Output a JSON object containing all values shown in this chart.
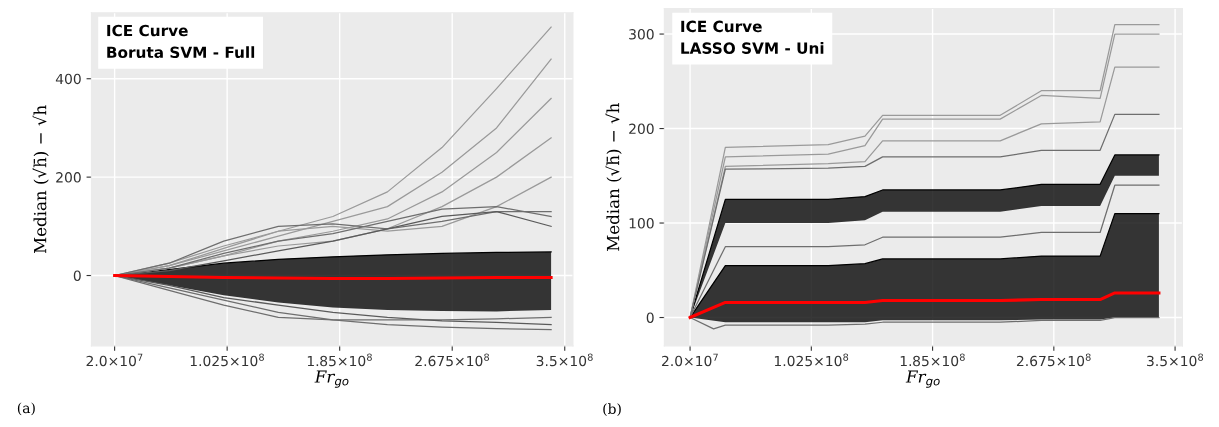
{
  "chart_data": [
    {
      "type": "line",
      "xlabel": "Fr$_{go}$",
      "ylabel": "Median (√h̄) − √h",
      "annotations": [
        "ICE Curve",
        "Boruta SVM - Full",
        "(a)"
      ],
      "x": [
        20000000,
        60000000,
        100000000,
        140000000,
        180000000,
        220000000,
        260000000,
        300000000,
        340000000
      ],
      "xlim": [
        3000000,
        356000000
      ],
      "ylim": [
        -143,
        534
      ],
      "xticks": [
        {
          "value": 20000000,
          "label": "2.0×10$^{7}$"
        },
        {
          "value": 102500000,
          "label": "1.025×10$^{8}$"
        },
        {
          "value": 185000000,
          "label": "1.85×10$^{8}$"
        },
        {
          "value": 267500000,
          "label": "2.675×10$^{8}$"
        },
        {
          "value": 350000000,
          "label": "3.5×10$^{8}$"
        }
      ],
      "yticks": [
        0,
        200,
        400
      ],
      "grid": true,
      "marker": "none",
      "line_style": "solid",
      "series": [
        {
          "color": "#000000",
          "values": [
            0,
            12,
            25,
            33,
            38,
            42,
            45,
            47,
            48
          ],
          "lower": [
            0,
            -20,
            -40,
            -55,
            -65,
            -70,
            -72,
            -73,
            -70
          ],
          "upper": [
            0,
            12,
            25,
            33,
            38,
            42,
            45,
            47,
            48
          ]
        },
        {
          "color": "#9a9a9a",
          "values": [
            0,
            25,
            60,
            90,
            120,
            170,
            260,
            380,
            505
          ]
        },
        {
          "color": "#9a9a9a",
          "values": [
            0,
            20,
            50,
            80,
            110,
            140,
            210,
            300,
            440
          ]
        },
        {
          "color": "#9a9a9a",
          "values": [
            0,
            15,
            40,
            70,
            90,
            115,
            170,
            250,
            360
          ]
        },
        {
          "color": "#9a9a9a",
          "values": [
            0,
            15,
            40,
            60,
            70,
            95,
            140,
            200,
            280
          ]
        },
        {
          "color": "#9a9a9a",
          "values": [
            0,
            20,
            55,
            90,
            100,
            90,
            100,
            140,
            200
          ]
        },
        {
          "color": "#6e6e6e",
          "values": [
            0,
            25,
            70,
            100,
            105,
            95,
            110,
            130,
            130
          ]
        },
        {
          "color": "#6e6e6e",
          "values": [
            0,
            15,
            45,
            70,
            85,
            110,
            135,
            140,
            120
          ]
        },
        {
          "color": "#5a5a5a",
          "values": [
            0,
            10,
            30,
            50,
            70,
            95,
            120,
            130,
            100
          ]
        },
        {
          "color": "#6e6e6e",
          "values": [
            0,
            -25,
            -50,
            -75,
            -90,
            -100,
            -105,
            -108,
            -110
          ]
        },
        {
          "color": "#6e6e6e",
          "values": [
            0,
            -30,
            -60,
            -85,
            -90,
            -90,
            -90,
            -88,
            -85
          ]
        },
        {
          "color": "#5a5a5a",
          "values": [
            0,
            -20,
            -45,
            -60,
            -75,
            -85,
            -92,
            -95,
            -100
          ]
        },
        {
          "color": "#ff0000",
          "values": [
            0,
            -2,
            -4,
            -5,
            -6,
            -6,
            -5,
            -4,
            -4
          ]
        }
      ]
    },
    {
      "type": "line",
      "xlabel": "Fr$_{go}$",
      "ylabel": "Median (√h̄) − √h",
      "annotations": [
        "ICE Curve",
        "LASSO SVM - Uni",
        "(b)"
      ],
      "x": [
        20000000,
        44000000,
        114000000,
        139000000,
        151000000,
        231000000,
        259000000,
        299000000,
        309000000,
        339000000
      ],
      "xlim": [
        2500000,
        355000000
      ],
      "ylim": [
        -30,
        327
      ],
      "xticks": [
        {
          "value": 20000000,
          "label": "2.0×10$^{7}$"
        },
        {
          "value": 102500000,
          "label": "1.025×10$^{8}$"
        },
        {
          "value": 185000000,
          "label": "1.85×10$^{8}$"
        },
        {
          "value": 267500000,
          "label": "2.675×10$^{8}$"
        },
        {
          "value": 350000000,
          "label": "3.5×10$^{8}$"
        }
      ],
      "yticks": [
        0,
        100,
        200,
        300
      ],
      "grid": true,
      "marker": "none",
      "line_style": "solid",
      "series": [
        {
          "color": "#000000",
          "values": [
            0,
            55,
            55,
            57,
            62,
            62,
            65,
            65,
            110,
            110
          ],
          "lower": [
            0,
            -5,
            -5,
            -5,
            -3,
            -3,
            -2,
            -2,
            0,
            0
          ],
          "upper": [
            0,
            55,
            55,
            57,
            62,
            62,
            65,
            65,
            110,
            110
          ]
        },
        {
          "color": "#000000",
          "values": [
            0,
            125,
            125,
            128,
            135,
            135,
            141,
            141,
            172,
            172
          ],
          "lower": [
            0,
            100,
            100,
            103,
            112,
            112,
            118,
            118,
            150,
            150
          ],
          "upper": [
            0,
            125,
            125,
            128,
            135,
            135,
            141,
            141,
            172,
            172
          ]
        },
        {
          "color": "#9a9a9a",
          "values": [
            0,
            180,
            183,
            192,
            214,
            214,
            240,
            240,
            310,
            310
          ]
        },
        {
          "color": "#9a9a9a",
          "values": [
            0,
            170,
            173,
            182,
            210,
            210,
            235,
            232,
            300,
            300
          ]
        },
        {
          "color": "#9a9a9a",
          "values": [
            0,
            160,
            163,
            165,
            187,
            187,
            205,
            207,
            265,
            265
          ]
        },
        {
          "color": "#6e6e6e",
          "values": [
            0,
            157,
            158,
            160,
            170,
            170,
            177,
            177,
            215,
            215
          ]
        },
        {
          "color": "#6e6e6e",
          "values": [
            0,
            75,
            75,
            77,
            85,
            85,
            90,
            90,
            140,
            140
          ]
        },
        {
          "color": "#6e6e6e",
          "x": [
            20000000,
            36000000,
            44000000,
            114000000,
            139000000,
            151000000,
            231000000,
            259000000,
            299000000,
            309000000,
            339000000
          ],
          "values": [
            0,
            -12,
            -8,
            -8,
            -7,
            -5,
            -5,
            -3,
            -3,
            0,
            0
          ]
        },
        {
          "color": "#ff0000",
          "values": [
            0,
            16,
            16,
            16,
            18,
            18,
            19,
            19,
            26,
            26
          ]
        }
      ]
    }
  ]
}
